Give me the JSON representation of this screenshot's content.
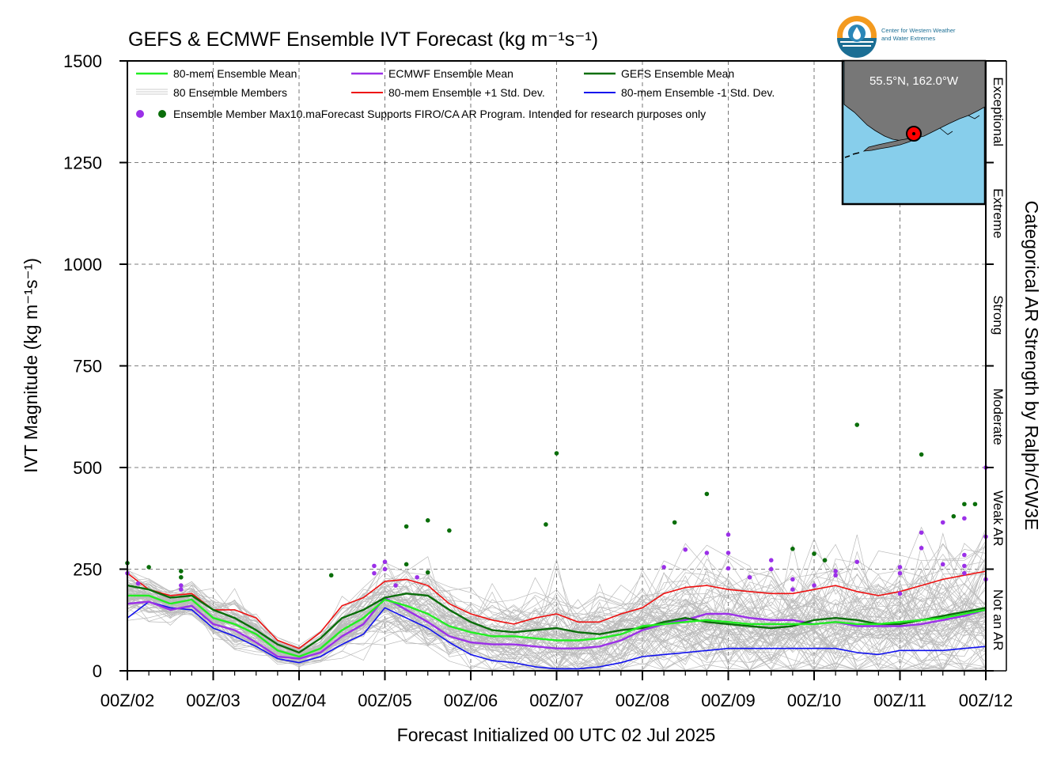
{
  "chart_data": {
    "type": "line",
    "title": "GEFS & ECMWF Ensemble IVT Forecast (kg m⁻¹s⁻¹)",
    "xlabel": "Forecast Initialized 00 UTC 02 Jul 2025",
    "ylabel": "IVT Magnitude (kg m⁻¹s⁻¹)",
    "right_label": "Categorical AR Strength by Ralph/CW3E",
    "ylim": [
      0,
      1500
    ],
    "yticks": [
      0,
      250,
      500,
      750,
      1000,
      1250,
      1500
    ],
    "xlim": [
      0,
      240
    ],
    "xticks": [
      {
        "h": 0,
        "label": "00Z/02"
      },
      {
        "h": 24,
        "label": "00Z/03"
      },
      {
        "h": 48,
        "label": "00Z/04"
      },
      {
        "h": 72,
        "label": "00Z/05"
      },
      {
        "h": 96,
        "label": "00Z/06"
      },
      {
        "h": 120,
        "label": "00Z/07"
      },
      {
        "h": 144,
        "label": "00Z/08"
      },
      {
        "h": 168,
        "label": "00Z/09"
      },
      {
        "h": 192,
        "label": "00Z/10"
      },
      {
        "h": 216,
        "label": "00Z/11"
      },
      {
        "h": 240,
        "label": "00Z/12"
      }
    ],
    "grid": true,
    "categories_right": [
      {
        "label": "Not an AR",
        "from": 0,
        "to": 250
      },
      {
        "label": "Weak AR",
        "from": 250,
        "to": 500
      },
      {
        "label": "Moderate",
        "from": 500,
        "to": 750
      },
      {
        "label": "Strong",
        "from": 750,
        "to": 1000
      },
      {
        "label": "Extreme",
        "from": 1000,
        "to": 1250
      },
      {
        "label": "Exceptional",
        "from": 1250,
        "to": 1500
      }
    ],
    "legend_placement": "top-left",
    "legend": [
      {
        "label": "80-mem Ensemble Mean",
        "color": "#22ee22"
      },
      {
        "label": "ECMWF Ensemble Mean",
        "color": "#9b30e8"
      },
      {
        "label": "GEFS Ensemble Mean",
        "color": "#0a6e0a"
      },
      {
        "label": "80 Ensemble Members",
        "color": "#bbbbbb"
      },
      {
        "label": "80-mem Ensemble +1 Std. Dev.",
        "color": "#ee1111"
      },
      {
        "label": "80-mem Ensemble -1 Std. Dev.",
        "color": "#1111ee"
      },
      {
        "label": "Ensemble Member Max10.ma",
        "color": "#9b30e8"
      }
    ],
    "disclaimer": "Forecast Supports FIRO/CA AR Program. Intended for research purposes only",
    "x_hours": [
      0,
      6,
      12,
      18,
      24,
      30,
      36,
      42,
      48,
      54,
      60,
      66,
      72,
      78,
      84,
      90,
      96,
      102,
      108,
      114,
      120,
      126,
      132,
      138,
      144,
      150,
      156,
      162,
      168,
      174,
      180,
      186,
      192,
      198,
      204,
      210,
      216,
      222,
      228,
      234,
      240
    ],
    "series": [
      {
        "name": "80-mem Ensemble Mean",
        "color": "#22ee22",
        "width": 2.4,
        "values": [
          185,
          185,
          165,
          175,
          130,
          115,
          90,
          50,
          35,
          55,
          100,
          130,
          175,
          160,
          140,
          110,
          95,
          85,
          85,
          80,
          75,
          75,
          80,
          90,
          110,
          115,
          120,
          125,
          120,
          115,
          115,
          115,
          115,
          120,
          115,
          115,
          120,
          125,
          130,
          140,
          150
        ]
      },
      {
        "name": "ECMWF Ensemble Mean",
        "color": "#9b30e8",
        "width": 2.4,
        "values": [
          165,
          170,
          150,
          160,
          115,
          100,
          70,
          35,
          30,
          45,
          85,
          115,
          180,
          150,
          120,
          85,
          70,
          65,
          65,
          60,
          55,
          55,
          60,
          75,
          100,
          115,
          125,
          140,
          140,
          130,
          125,
          125,
          115,
          120,
          110,
          110,
          110,
          115,
          125,
          135,
          150
        ]
      },
      {
        "name": "GEFS Ensemble Mean",
        "color": "#0a6e0a",
        "width": 2.4,
        "values": [
          210,
          200,
          180,
          185,
          150,
          130,
          100,
          65,
          45,
          80,
          130,
          150,
          180,
          190,
          185,
          150,
          120,
          100,
          95,
          100,
          105,
          95,
          90,
          100,
          105,
          120,
          130,
          120,
          115,
          110,
          105,
          110,
          125,
          130,
          125,
          115,
          115,
          125,
          135,
          145,
          155
        ]
      },
      {
        "name": "80-mem Ensemble +1 Std. Dev.",
        "color": "#ee1111",
        "width": 1.6,
        "values": [
          240,
          200,
          185,
          190,
          150,
          150,
          130,
          75,
          55,
          95,
          160,
          180,
          220,
          225,
          210,
          165,
          140,
          125,
          115,
          130,
          140,
          120,
          120,
          140,
          155,
          190,
          205,
          210,
          200,
          195,
          190,
          190,
          200,
          210,
          195,
          185,
          195,
          210,
          225,
          235,
          245
        ]
      },
      {
        "name": "80-mem Ensemble -1 Std. Dev.",
        "color": "#1111ee",
        "width": 1.6,
        "values": [
          130,
          170,
          155,
          150,
          105,
          85,
          60,
          30,
          20,
          35,
          65,
          90,
          155,
          130,
          105,
          70,
          40,
          25,
          20,
          10,
          5,
          5,
          10,
          20,
          35,
          40,
          45,
          50,
          55,
          55,
          55,
          55,
          55,
          55,
          45,
          40,
          50,
          50,
          50,
          55,
          60
        ]
      }
    ],
    "members": {
      "count": 80,
      "color": "#bbbbbb",
      "spread_std": [
        28,
        25,
        22,
        24,
        28,
        30,
        28,
        18,
        12,
        18,
        30,
        38,
        45,
        50,
        55,
        50,
        45,
        45,
        48,
        55,
        60,
        60,
        58,
        58,
        62,
        68,
        72,
        78,
        75,
        75,
        72,
        72,
        78,
        85,
        85,
        80,
        82,
        88,
        95,
        100,
        110
      ],
      "seed": 7
    },
    "max_points_gefs": [
      {
        "h": 0,
        "v": 265
      },
      {
        "h": 6,
        "v": 255
      },
      {
        "h": 15,
        "v": 245
      },
      {
        "h": 15,
        "v": 230
      },
      {
        "h": 57,
        "v": 235
      },
      {
        "h": 78,
        "v": 355
      },
      {
        "h": 78,
        "v": 262
      },
      {
        "h": 84,
        "v": 370
      },
      {
        "h": 84,
        "v": 242
      },
      {
        "h": 90,
        "v": 345
      },
      {
        "h": 117,
        "v": 360
      },
      {
        "h": 120,
        "v": 535
      },
      {
        "h": 153,
        "v": 365
      },
      {
        "h": 162,
        "v": 435
      },
      {
        "h": 186,
        "v": 300
      },
      {
        "h": 192,
        "v": 288
      },
      {
        "h": 195,
        "v": 272
      },
      {
        "h": 204,
        "v": 605
      },
      {
        "h": 222,
        "v": 532
      },
      {
        "h": 231,
        "v": 380
      },
      {
        "h": 234,
        "v": 410
      },
      {
        "h": 237,
        "v": 410
      }
    ],
    "max_points_ecmwf": [
      {
        "h": 0,
        "v": 240
      },
      {
        "h": 3,
        "v": 215
      },
      {
        "h": 15,
        "v": 210
      },
      {
        "h": 15,
        "v": 200
      },
      {
        "h": 69,
        "v": 258
      },
      {
        "h": 69,
        "v": 240
      },
      {
        "h": 72,
        "v": 268
      },
      {
        "h": 72,
        "v": 250
      },
      {
        "h": 75,
        "v": 210
      },
      {
        "h": 81,
        "v": 230
      },
      {
        "h": 150,
        "v": 255
      },
      {
        "h": 156,
        "v": 298
      },
      {
        "h": 162,
        "v": 290
      },
      {
        "h": 168,
        "v": 335
      },
      {
        "h": 168,
        "v": 290
      },
      {
        "h": 168,
        "v": 252
      },
      {
        "h": 174,
        "v": 230
      },
      {
        "h": 180,
        "v": 272
      },
      {
        "h": 180,
        "v": 250
      },
      {
        "h": 186,
        "v": 225
      },
      {
        "h": 186,
        "v": 200
      },
      {
        "h": 192,
        "v": 210
      },
      {
        "h": 198,
        "v": 245
      },
      {
        "h": 198,
        "v": 235
      },
      {
        "h": 204,
        "v": 268
      },
      {
        "h": 216,
        "v": 255
      },
      {
        "h": 216,
        "v": 240
      },
      {
        "h": 216,
        "v": 190
      },
      {
        "h": 222,
        "v": 340
      },
      {
        "h": 222,
        "v": 302
      },
      {
        "h": 228,
        "v": 365
      },
      {
        "h": 228,
        "v": 262
      },
      {
        "h": 234,
        "v": 375
      },
      {
        "h": 234,
        "v": 285
      },
      {
        "h": 234,
        "v": 258
      },
      {
        "h": 234,
        "v": 240
      },
      {
        "h": 240,
        "v": 500
      },
      {
        "h": 240,
        "v": 330
      },
      {
        "h": 240,
        "v": 225
      }
    ],
    "inset": {
      "coords": "55.5°N, 162.0°W"
    },
    "logo": {
      "text_line1": "Center for Western Weather",
      "text_line2": "and Water Extremes"
    }
  }
}
